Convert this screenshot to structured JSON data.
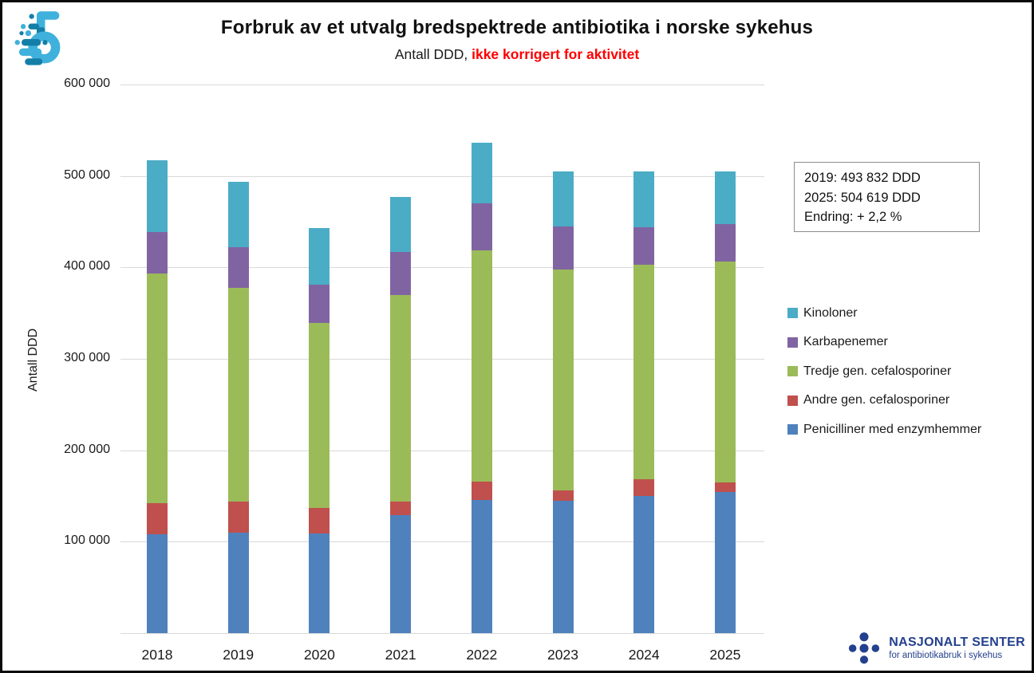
{
  "header": {
    "title": "Forbruk av et utvalg bredspektrede antibiotika i norske sykehus",
    "subtitle_plain": "Antall DDD,",
    "subtitle_emph": "ikke korrigert for aktivitet",
    "subtitle_emph_color": "#ff0000"
  },
  "annotation_box": {
    "lines": [
      "2019: 493 832 DDD",
      "2025: 504 619 DDD",
      "Endring: + 2,2 %"
    ]
  },
  "chart_data": {
    "type": "bar",
    "stacked": true,
    "title": "Forbruk av et utvalg bredspektrede antibiotika i norske sykehus",
    "subtitle": "Antall DDD, ikke korrigert for aktivitet",
    "categories": [
      "2018",
      "2019",
      "2020",
      "2021",
      "2022",
      "2023",
      "2024",
      "2025"
    ],
    "series": [
      {
        "name": "Penicilliner med enzymhemmer",
        "color": "#4F81BD",
        "values": [
          108000,
          110000,
          109000,
          129000,
          146000,
          145000,
          150000,
          154000
        ]
      },
      {
        "name": "Andre gen. cefalosporiner",
        "color": "#C0504D",
        "values": [
          34000,
          34000,
          28000,
          15000,
          20000,
          11000,
          18000,
          11000
        ]
      },
      {
        "name": "Tredje gen. cefalosporiner",
        "color": "#9BBB59",
        "values": [
          251000,
          234000,
          202000,
          226000,
          253000,
          242000,
          235000,
          241000
        ]
      },
      {
        "name": "Karbapenemer",
        "color": "#8064A2",
        "values": [
          46000,
          44000,
          42000,
          47000,
          51000,
          47000,
          41000,
          41000
        ]
      },
      {
        "name": "Kinoloner",
        "color": "#4BACC6",
        "values": [
          78000,
          72000,
          62000,
          60000,
          66000,
          60000,
          61000,
          58000
        ]
      }
    ],
    "approx_totals": [
      517000,
      493832,
      443000,
      477000,
      536000,
      505000,
      505000,
      504619
    ],
    "xlabel": "",
    "ylabel": "Antall DDD",
    "ylim": [
      0,
      600000
    ],
    "yticks": [
      {
        "value": 600000,
        "label": "600 000"
      },
      {
        "value": 500000,
        "label": "500 000"
      },
      {
        "value": 400000,
        "label": "400 000"
      },
      {
        "value": 300000,
        "label": "300 000"
      },
      {
        "value": 200000,
        "label": "200 000"
      },
      {
        "value": 100000,
        "label": "100 000"
      }
    ],
    "grid": true,
    "legend_position": "right",
    "legend_order_top_to_bottom": [
      "Kinoloner",
      "Karbapenemer",
      "Tredje gen. cefalosporiner",
      "Andre gen. cefalosporiner",
      "Penicilliner med enzymhemmer"
    ]
  },
  "branding": {
    "footer_title": "NASJONALT SENTER",
    "footer_subtitle": "for antibiotikabruk i sykehus",
    "footer_color": "#24408E",
    "logo_light_blue": "#3FB1DC",
    "logo_dark_blue": "#137FA8"
  }
}
